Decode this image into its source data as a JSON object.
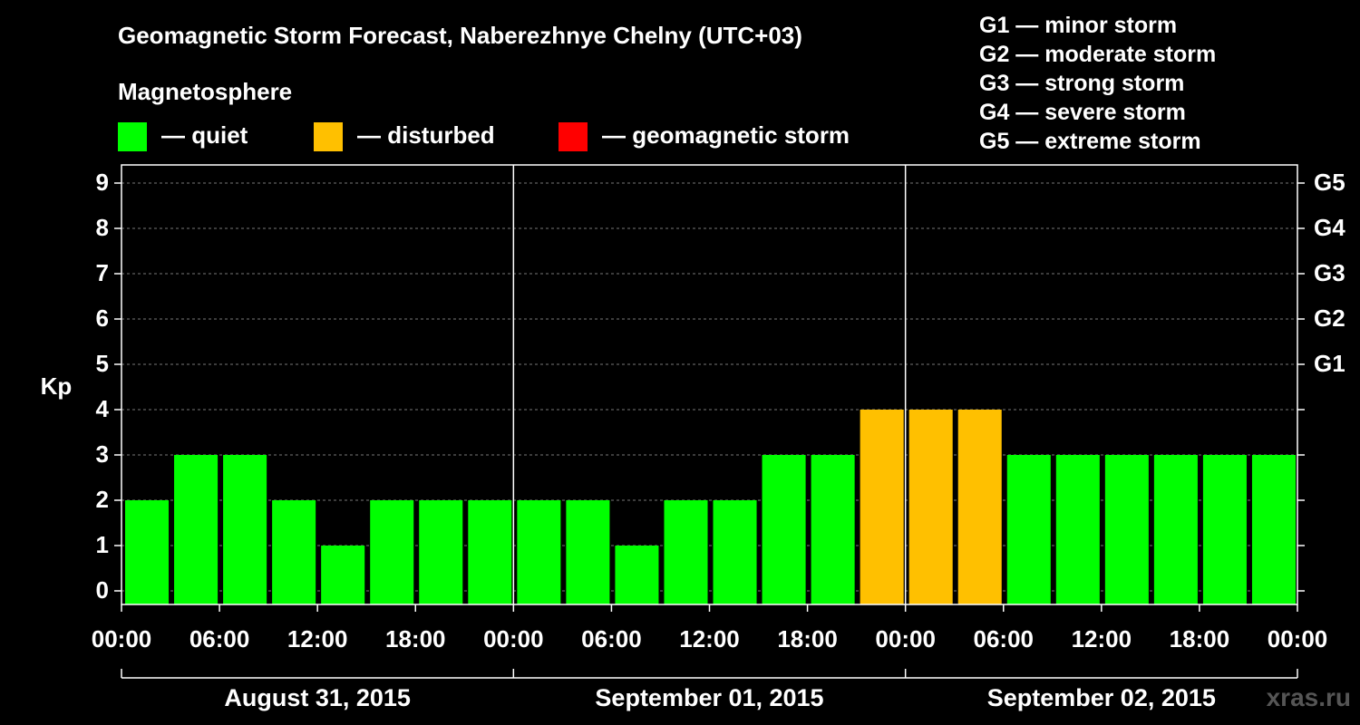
{
  "header": {
    "title": "Geomagnetic Storm Forecast, Naberezhnye Chelny (UTC+03)",
    "magnetosphere_label": "Magnetosphere"
  },
  "legend": {
    "quiet": "— quiet",
    "disturbed": "— disturbed",
    "storm": "— geomagnetic storm",
    "colors": {
      "quiet": "#00ff00",
      "disturbed": "#ffc000",
      "storm": "#ff0000"
    }
  },
  "storm_scale": [
    "G1 — minor storm",
    "G2 — moderate storm",
    "G3 — strong storm",
    "G4 — severe storm",
    "G5 — extreme storm"
  ],
  "watermark": "xras.ru",
  "chart_data": {
    "type": "bar",
    "ylabel": "Kp",
    "ylim": [
      0,
      9
    ],
    "yticks": [
      "0",
      "1",
      "2",
      "3",
      "4",
      "5",
      "6",
      "7",
      "8",
      "9"
    ],
    "right_axis": {
      "G1": 5,
      "G2": 6,
      "G3": 7,
      "G4": 8,
      "G5": 9
    },
    "x_tick_labels": [
      "00:00",
      "06:00",
      "12:00",
      "18:00",
      "00:00",
      "06:00",
      "12:00",
      "18:00",
      "00:00",
      "06:00",
      "12:00",
      "18:00",
      "00:00"
    ],
    "days": [
      "August 31, 2015",
      "September 01, 2015",
      "September 02, 2015"
    ],
    "interval_hours": 3,
    "values": [
      2,
      3,
      3,
      2,
      1,
      2,
      2,
      2,
      2,
      2,
      1,
      2,
      2,
      3,
      3,
      4,
      4,
      4,
      3,
      3,
      3,
      3,
      3,
      3
    ],
    "status": [
      "quiet",
      "quiet",
      "quiet",
      "quiet",
      "quiet",
      "quiet",
      "quiet",
      "quiet",
      "quiet",
      "quiet",
      "quiet",
      "quiet",
      "quiet",
      "quiet",
      "quiet",
      "disturbed",
      "disturbed",
      "disturbed",
      "quiet",
      "quiet",
      "quiet",
      "quiet",
      "quiet",
      "quiet"
    ],
    "grid": true
  }
}
